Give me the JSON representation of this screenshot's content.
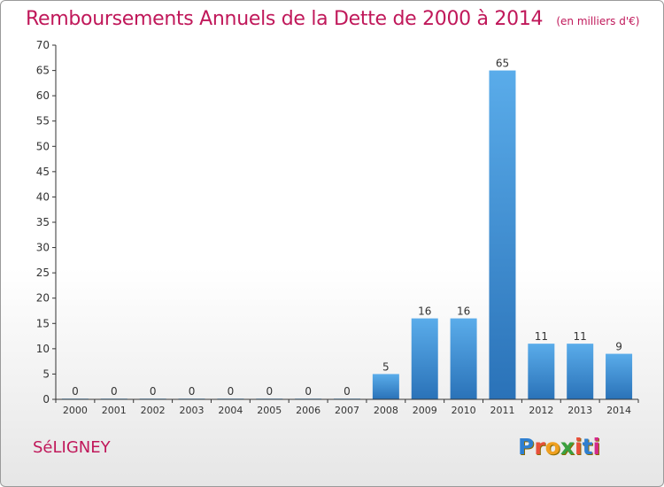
{
  "header": {
    "title": "Remboursements Annuels de la Dette de 2000 à 2014",
    "unit": "(en milliers d'€)"
  },
  "footer": {
    "commune": "SéLIGNEY",
    "logo": "Proxiti"
  },
  "colors": {
    "title": "#c0185a",
    "bar_top": "#5aacea",
    "bar_bottom": "#2a72b8",
    "axis": "#333333",
    "logo": [
      "#2f7fd0",
      "#e8503a",
      "#f0a020",
      "#3aa040",
      "#e8503a",
      "#2f7fd0",
      "#d42a8a"
    ]
  },
  "chart_data": {
    "type": "bar",
    "title": "Remboursements Annuels de la Dette de 2000 à 2014",
    "xlabel": "",
    "ylabel": "",
    "categories": [
      "2000",
      "2001",
      "2002",
      "2003",
      "2004",
      "2005",
      "2006",
      "2007",
      "2008",
      "2009",
      "2010",
      "2011",
      "2012",
      "2013",
      "2014"
    ],
    "values": [
      0,
      0,
      0,
      0,
      0,
      0,
      0,
      0,
      5,
      16,
      16,
      65,
      11,
      11,
      9
    ],
    "ylim": [
      0,
      70
    ],
    "yticks": [
      0,
      5,
      10,
      15,
      20,
      25,
      30,
      35,
      40,
      45,
      50,
      55,
      60,
      65,
      70
    ],
    "grid": false,
    "legend": "none"
  }
}
